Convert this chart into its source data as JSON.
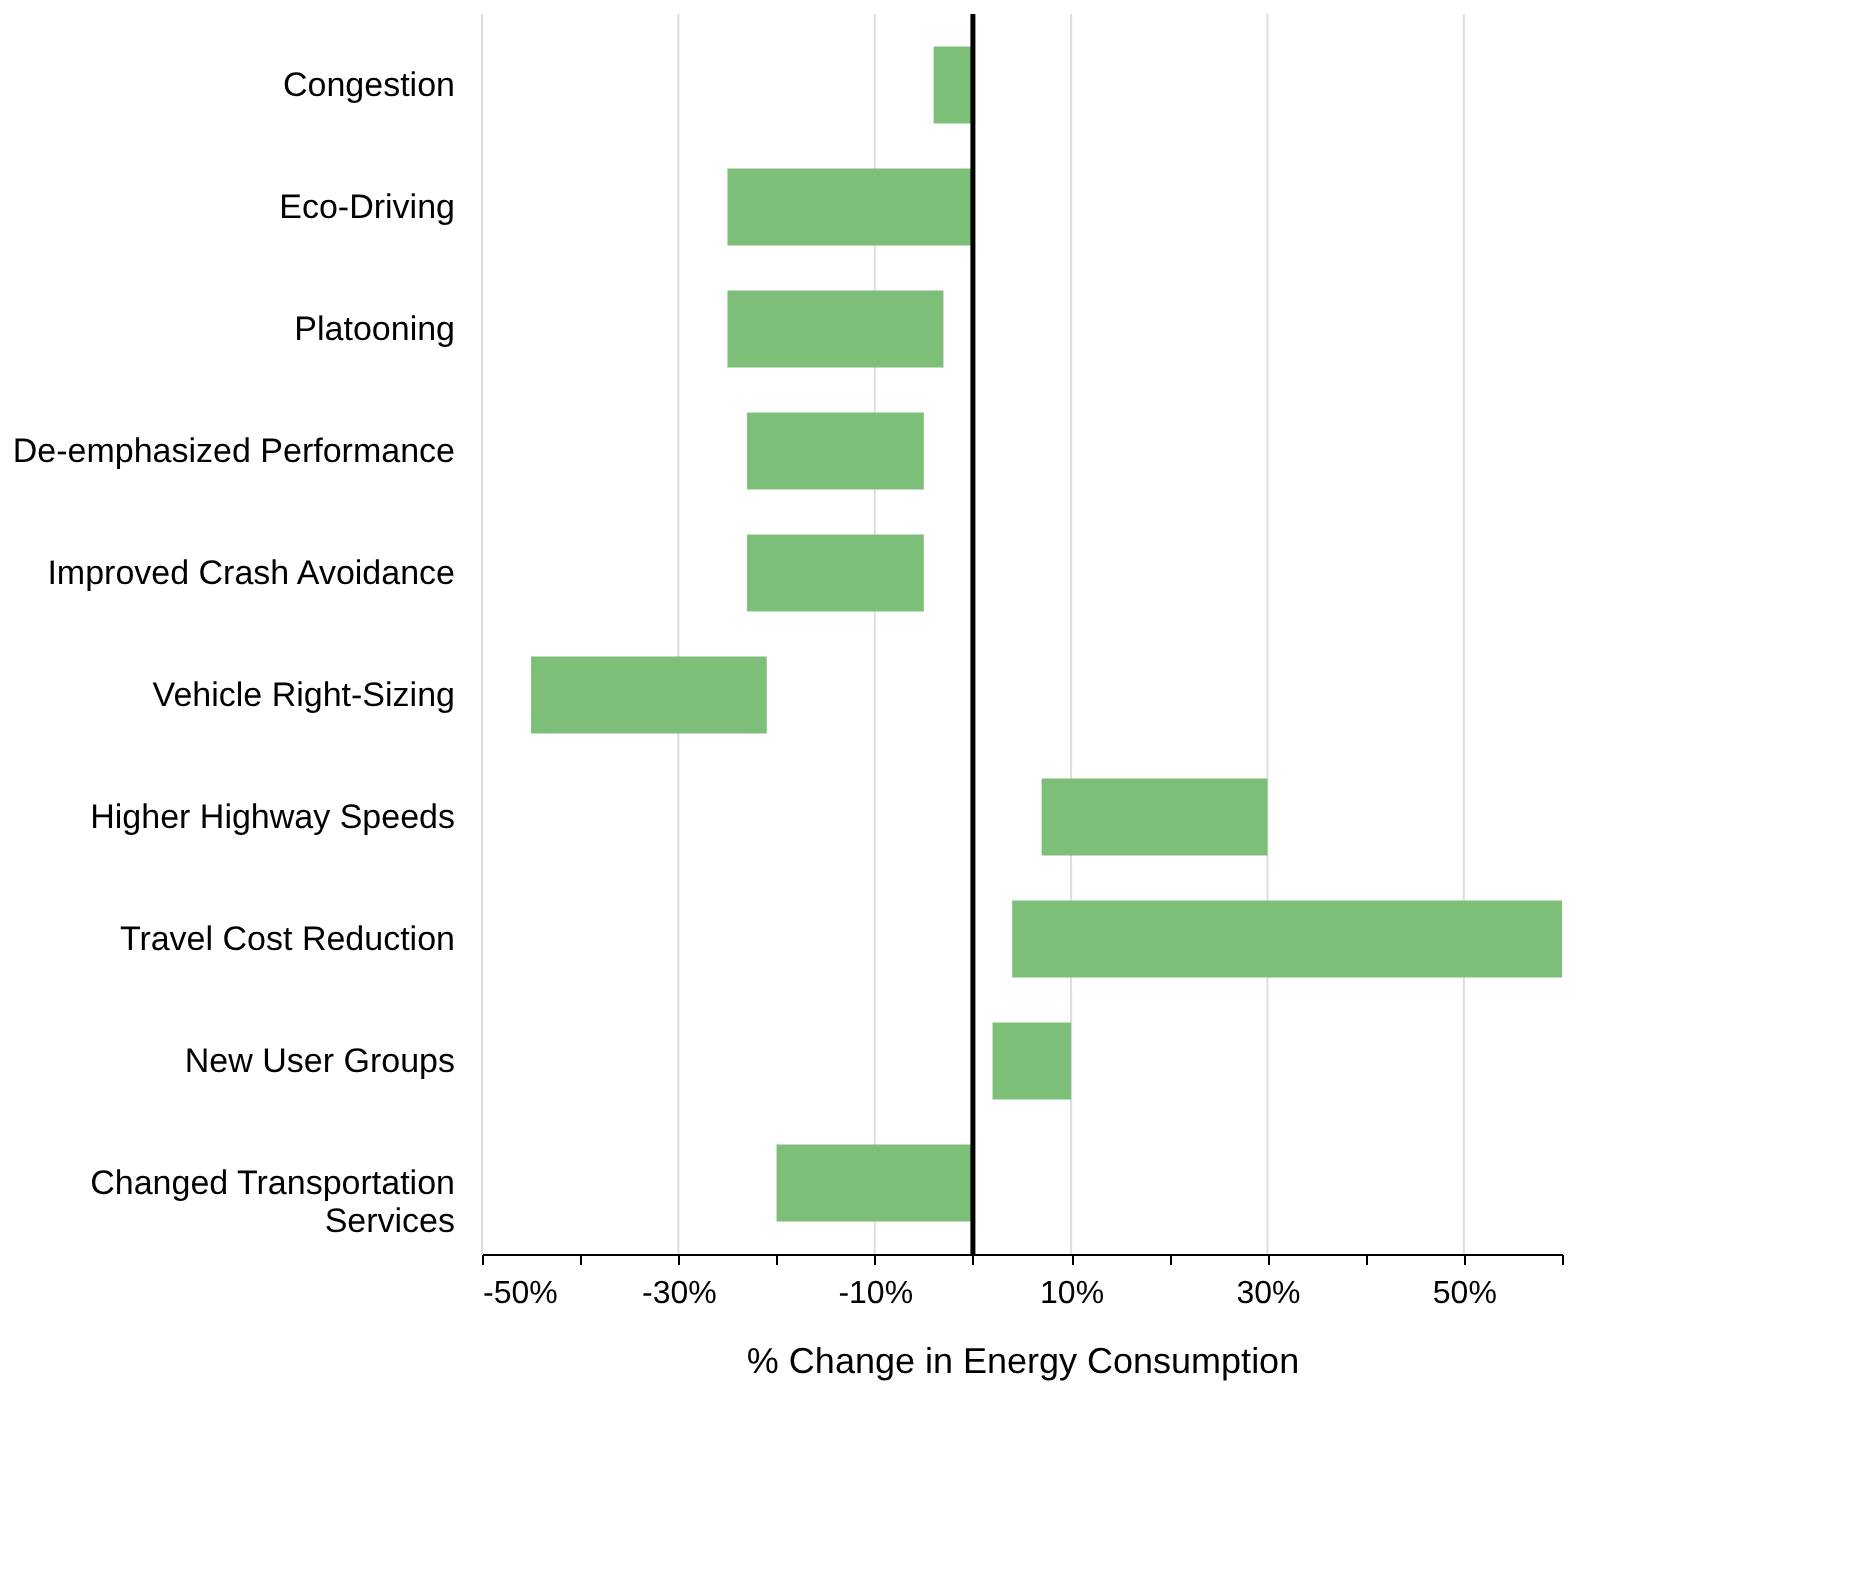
{
  "chart_data": {
    "type": "bar",
    "orientation": "horizontal",
    "xlabel": "% Change in Energy Consumption",
    "categories": [
      "Congestion",
      "Eco-Driving",
      "Platooning",
      "De-emphasized Performance",
      "Improved Crash Avoidance",
      "Vehicle Right-Sizing",
      "Higher Highway Speeds",
      "Travel Cost Reduction",
      "New User Groups",
      "Changed Transportation Services"
    ],
    "base": [
      -4,
      -25,
      -25,
      -23,
      -23,
      -45,
      7,
      4,
      2,
      -20
    ],
    "values": [
      4,
      25,
      22,
      18,
      18,
      24,
      23,
      56,
      8,
      20
    ],
    "color": "#7dbf78",
    "xlim": [
      -50,
      60
    ],
    "xticks": [
      {
        "value": -50,
        "label": "-50%"
      },
      {
        "value": -40,
        "label": null
      },
      {
        "value": -30,
        "label": "-30%"
      },
      {
        "value": -20,
        "label": null
      },
      {
        "value": -10,
        "label": "-10%"
      },
      {
        "value": 0,
        "label": null
      },
      {
        "value": 10,
        "label": "10%"
      },
      {
        "value": 20,
        "label": null
      },
      {
        "value": 30,
        "label": "30%"
      },
      {
        "value": 40,
        "label": null
      },
      {
        "value": 50,
        "label": "50%"
      },
      {
        "value": 60,
        "label": null
      }
    ],
    "grid": "x",
    "ref_lines": [
      {
        "axis": "x",
        "value": 0,
        "label": null,
        "color": "#000000"
      }
    ]
  }
}
